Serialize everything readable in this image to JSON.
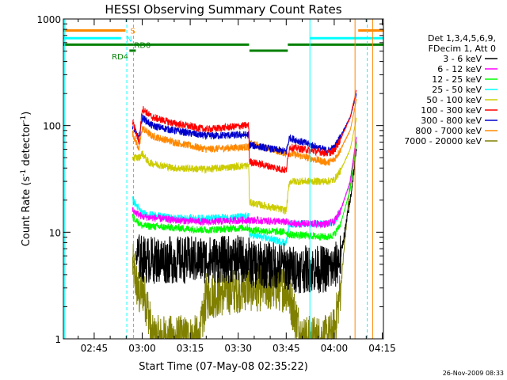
{
  "chart_data": {
    "type": "line",
    "title": "HESSI Observing Summary Count Rates",
    "xlabel": "Start Time (07-May-08 02:35:22)",
    "ylabel_main": "Count Rate (s",
    "ylabel_sup1": "-1",
    "ylabel_mid": " detector",
    "ylabel_sup2": "-1",
    "ylabel_end": ")",
    "yscale": "log",
    "ylim": [
      1,
      1000
    ],
    "xlim_minutes": [
      35.37,
      135.37
    ],
    "x_tick_labels": [
      "02:45",
      "03:00",
      "03:15",
      "03:30",
      "03:45",
      "04:00",
      "04:15"
    ],
    "x_ticks_minutes": [
      45,
      60,
      75,
      90,
      105,
      120,
      135
    ],
    "y_tick_labels": [
      "1",
      "10",
      "100",
      "1000"
    ],
    "y_ticks": [
      1,
      10,
      100,
      1000
    ],
    "legend_position": "right",
    "legend_header": [
      "Det 1,3,4,5,6,9,",
      "FDecim 1, Att 0"
    ],
    "series": [
      {
        "name": "3 - 6 keV",
        "color": "#000000",
        "points": [
          [
            56,
            0
          ],
          [
            58,
            6.0
          ],
          [
            61,
            5.5
          ],
          [
            70,
            5.5
          ],
          [
            80,
            5.5
          ],
          [
            92,
            5.6
          ],
          [
            93.3,
            5.6
          ],
          [
            93.5,
            5.0
          ],
          [
            105,
            4.8
          ],
          [
            106,
            4.5
          ],
          [
            118,
            4.5
          ],
          [
            120,
            4.6
          ],
          [
            122,
            6
          ],
          [
            125,
            20
          ],
          [
            127,
            60
          ]
        ]
      },
      {
        "name": "6 - 12 keV",
        "color": "#ff00ff",
        "points": [
          [
            56,
            0
          ],
          [
            57,
            16
          ],
          [
            60,
            14
          ],
          [
            70,
            13
          ],
          [
            80,
            12.5
          ],
          [
            92,
            13
          ],
          [
            93.3,
            13
          ],
          [
            93.5,
            13
          ],
          [
            105,
            12.5
          ],
          [
            106,
            12
          ],
          [
            118,
            12
          ],
          [
            120,
            12.5
          ],
          [
            122,
            16
          ],
          [
            125,
            30
          ],
          [
            127,
            80
          ]
        ]
      },
      {
        "name": "12 - 25 keV",
        "color": "#00ff00",
        "points": [
          [
            56,
            0
          ],
          [
            57,
            14
          ],
          [
            60,
            11.5
          ],
          [
            70,
            11
          ],
          [
            80,
            10.5
          ],
          [
            92,
            11
          ],
          [
            93.3,
            11
          ],
          [
            93.5,
            10.5
          ],
          [
            105,
            10
          ],
          [
            106,
            9.5
          ],
          [
            118,
            9
          ],
          [
            120,
            9.5
          ],
          [
            122,
            12
          ],
          [
            125,
            25
          ],
          [
            127,
            70
          ]
        ]
      },
      {
        "name": "25 - 50 keV",
        "color": "#00ffff",
        "points": [
          [
            56,
            0
          ],
          [
            57,
            20
          ],
          [
            60,
            15
          ],
          [
            70,
            13.5
          ],
          [
            80,
            13.5
          ],
          [
            92,
            14
          ],
          [
            93.3,
            14
          ],
          [
            93.5,
            9.5
          ],
          [
            105,
            8
          ],
          [
            106,
            12
          ],
          [
            118,
            12
          ],
          [
            120,
            12.5
          ],
          [
            122,
            16
          ],
          [
            125,
            30
          ],
          [
            127,
            80
          ]
        ]
      },
      {
        "name": "50 - 100 keV",
        "color": "#cccc00",
        "points": [
          [
            56,
            0
          ],
          [
            57,
            50
          ],
          [
            59,
            50
          ],
          [
            60,
            55
          ],
          [
            62,
            45
          ],
          [
            70,
            40
          ],
          [
            80,
            39
          ],
          [
            92,
            42
          ],
          [
            93.3,
            42
          ],
          [
            93.5,
            19
          ],
          [
            105,
            16
          ],
          [
            106,
            30
          ],
          [
            118,
            30
          ],
          [
            120,
            31
          ],
          [
            122,
            38
          ],
          [
            125,
            60
          ],
          [
            127,
            120
          ]
        ]
      },
      {
        "name": "100 - 300 keV",
        "color": "#ff0000",
        "points": [
          [
            56,
            0
          ],
          [
            57,
            110
          ],
          [
            59,
            70
          ],
          [
            60,
            145
          ],
          [
            63,
            120
          ],
          [
            70,
            105
          ],
          [
            80,
            92
          ],
          [
            92,
            100
          ],
          [
            93.3,
            100
          ],
          [
            93.5,
            46
          ],
          [
            105,
            38
          ],
          [
            106,
            63
          ],
          [
            118,
            55
          ],
          [
            120,
            58
          ],
          [
            122,
            75
          ],
          [
            125,
            120
          ],
          [
            127,
            220
          ]
        ]
      },
      {
        "name": "300 - 800 keV",
        "color": "#0000cc",
        "points": [
          [
            56,
            0
          ],
          [
            57,
            100
          ],
          [
            59,
            75
          ],
          [
            60,
            120
          ],
          [
            63,
            100
          ],
          [
            70,
            90
          ],
          [
            80,
            80
          ],
          [
            92,
            82
          ],
          [
            93.3,
            82
          ],
          [
            93.5,
            66
          ],
          [
            105,
            57
          ],
          [
            106,
            77
          ],
          [
            118,
            58
          ],
          [
            120,
            62
          ],
          [
            122,
            80
          ],
          [
            125,
            120
          ],
          [
            127,
            200
          ]
        ]
      },
      {
        "name": "800 - 7000 keV",
        "color": "#ff8800",
        "points": [
          [
            56,
            0
          ],
          [
            57,
            85
          ],
          [
            59,
            60
          ],
          [
            60,
            95
          ],
          [
            63,
            80
          ],
          [
            70,
            70
          ],
          [
            80,
            60
          ],
          [
            92,
            63
          ],
          [
            93.3,
            63
          ],
          [
            93.5,
            68
          ],
          [
            105,
            55
          ],
          [
            106,
            55
          ],
          [
            118,
            45
          ],
          [
            120,
            48
          ],
          [
            122,
            60
          ],
          [
            125,
            90
          ],
          [
            127,
            180
          ]
        ]
      },
      {
        "name": "7000 - 20000 keV",
        "color": "#808000",
        "points": [
          [
            56,
            0
          ],
          [
            57,
            5
          ],
          [
            59,
            2.5
          ],
          [
            60,
            3
          ],
          [
            62,
            1.8
          ],
          [
            63,
            1
          ],
          [
            78,
            1
          ],
          [
            80,
            2.5
          ],
          [
            92,
            3
          ],
          [
            93.3,
            3.2
          ],
          [
            93.5,
            3
          ],
          [
            105,
            3
          ],
          [
            106,
            2.5
          ],
          [
            110,
            1
          ],
          [
            118,
            1
          ],
          [
            120,
            1.2
          ],
          [
            122,
            3
          ],
          [
            125,
            30
          ],
          [
            127,
            70
          ]
        ]
      }
    ],
    "state_flags": [
      {
        "label": "S",
        "color": "#ff8800",
        "level": 780,
        "segments": [
          [
            35.37,
            54.8
          ],
          [
            127.5,
            135.37
          ]
        ],
        "label_at": 56.3
      },
      {
        "label": "N",
        "color": "#00ffff",
        "level": 660,
        "segments": [
          [
            35.37,
            53.4
          ],
          [
            112.5,
            135.37
          ]
        ],
        "label_at": 55
      },
      {
        "label": "RD0",
        "color": "#008000",
        "level": 575,
        "segments": [
          [
            35.37,
            93.4
          ],
          [
            105.5,
            135.37
          ]
        ],
        "label_at": 57.5
      },
      {
        "label": "RD4",
        "color": "#008000",
        "level": 505,
        "segments": [
          [
            93.5,
            105.5
          ],
          [
            56,
            58
          ]
        ],
        "label_at": 50.5
      }
    ],
    "vlines": [
      {
        "x": 35.8,
        "color": "#00ffff",
        "dashed": false
      },
      {
        "x": 55.2,
        "color": "#00ffff",
        "dashed": true
      },
      {
        "x": 57.3,
        "color": "#ff8800",
        "dashed": true
      },
      {
        "x": 112.4,
        "color": "#00ffff",
        "dashed": false
      },
      {
        "x": 126.5,
        "color": "#ff8800",
        "dashed": false
      },
      {
        "x": 130.3,
        "color": "#00ffff",
        "dashed": true
      },
      {
        "x": 132.0,
        "color": "#ff8800",
        "dashed": false
      }
    ]
  },
  "footer_stamp": "26-Nov-2009 08:33"
}
